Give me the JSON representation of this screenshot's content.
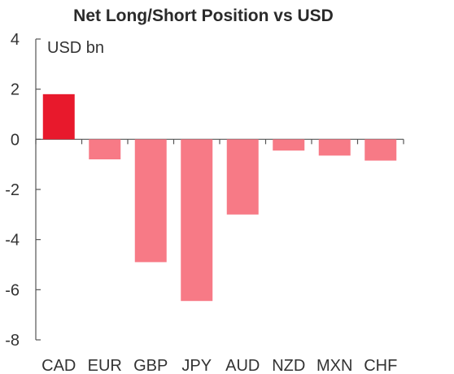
{
  "chart_data": {
    "type": "bar",
    "title": "Net Long/Short Position vs USD",
    "unit_label": "USD bn",
    "categories": [
      "CAD",
      "EUR",
      "GBP",
      "JPY",
      "AUD",
      "NZD",
      "MXN",
      "CHF"
    ],
    "values": [
      1.8,
      -0.8,
      -4.9,
      -6.45,
      -3.0,
      -0.45,
      -0.65,
      -0.85
    ],
    "ylim": [
      -8,
      4
    ],
    "yticks": [
      4,
      2,
      0,
      -2,
      -4,
      -6,
      -8
    ],
    "grid": false,
    "legend": "none",
    "colors": {
      "highlight": "#e8192c",
      "bars": "#f77a86",
      "axis": "#555555"
    },
    "highlight_index": 0
  }
}
